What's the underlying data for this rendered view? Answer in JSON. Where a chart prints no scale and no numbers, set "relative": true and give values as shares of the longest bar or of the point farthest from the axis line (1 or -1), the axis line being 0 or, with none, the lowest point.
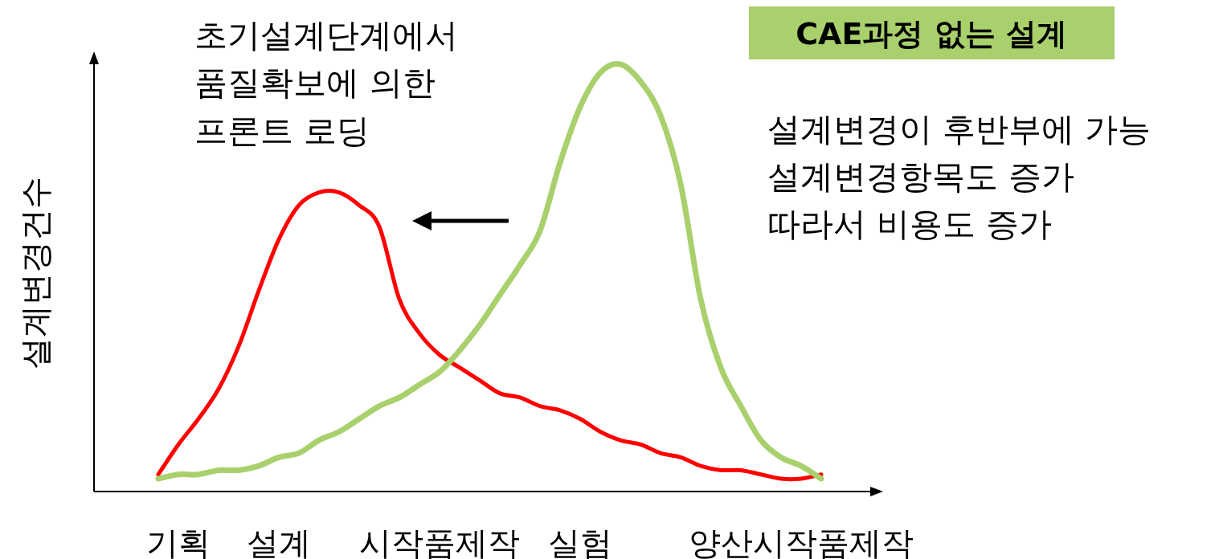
{
  "chart_data": {
    "type": "line",
    "relative": true,
    "ylabel": "설계변경건수",
    "legend": "top right",
    "categories": [
      null,
      "기획",
      null,
      null,
      null,
      null,
      "설계",
      null,
      null,
      null,
      null,
      null,
      null,
      null,
      "시작품제작",
      null,
      null,
      null,
      null,
      null,
      null,
      "실험",
      null,
      null,
      null,
      null,
      null,
      null,
      null,
      null,
      null,
      null,
      "양산시작품제작",
      null
    ],
    "series": [
      {
        "color": "#ff0000",
        "values": [
          0.04,
          0.11,
          0.17,
          0.24,
          0.34,
          0.47,
          0.59,
          0.67,
          0.7,
          0.7,
          0.67,
          0.62,
          0.45,
          0.37,
          0.32,
          0.29,
          0.26,
          0.23,
          0.22,
          0.2,
          0.19,
          0.17,
          0.14,
          0.12,
          0.11,
          0.09,
          0.08,
          0.06,
          0.05,
          0.05,
          0.04,
          0.03,
          0.03,
          0.04
        ]
      },
      {
        "name": "CAE과정 없는 설계",
        "color": "#a9d06c",
        "values": [
          0.03,
          0.04,
          0.04,
          0.05,
          0.05,
          0.06,
          0.08,
          0.09,
          0.12,
          0.14,
          0.17,
          0.2,
          0.22,
          0.25,
          0.28,
          0.33,
          0.39,
          0.46,
          0.53,
          0.61,
          0.77,
          0.9,
          0.98,
          1,
          0.96,
          0.88,
          0.72,
          0.45,
          0.29,
          0.2,
          0.12,
          0.08,
          0.06,
          0.03
        ]
      }
    ],
    "annotations": [
      "초기설계단계에서",
      "품질확보에 의한",
      "프론트 로딩",
      "설계변경이 후반부에 가능",
      "설계변경항목도 증가",
      "따라서 비용도 증가"
    ]
  }
}
